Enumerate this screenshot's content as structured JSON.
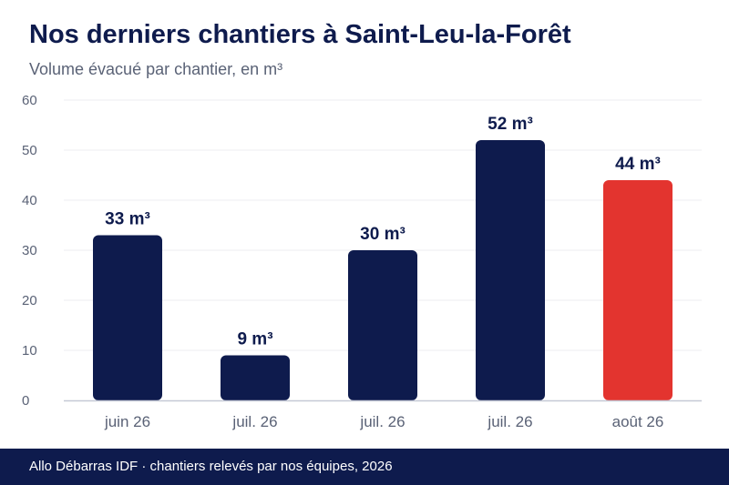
{
  "header": {
    "title": "Nos derniers chantiers à Saint-Leu-la-Forêt",
    "subtitle": "Volume évacué par chantier, en m³"
  },
  "footer": {
    "text": "Allo Débarras IDF · chantiers relevés par nos équipes, 2026"
  },
  "chart_data": {
    "type": "bar",
    "title": "Nos derniers chantiers à Saint-Leu-la-Forêt",
    "subtitle": "Volume évacué par chantier, en m³",
    "xlabel": "",
    "ylabel": "",
    "categories": [
      "juin 26",
      "juil. 26",
      "juil. 26",
      "juil. 26",
      "août 26"
    ],
    "values": [
      33,
      9,
      30,
      52,
      44
    ],
    "data_labels": [
      "33 m³",
      "9 m³",
      "30 m³",
      "52 m³",
      "44 m³"
    ],
    "ylim": [
      0,
      60
    ],
    "yticks": [
      0,
      10,
      20,
      30,
      40,
      50,
      60
    ],
    "grid": true,
    "legend": "none",
    "colors": {
      "default": "#0e1b4d",
      "highlight": "#e3342f",
      "highlight_index": 4,
      "grid": "#ececf0",
      "axis": "#c5c9d6",
      "tick_text": "#5a6276",
      "label_text": "#0e1b4d"
    }
  }
}
